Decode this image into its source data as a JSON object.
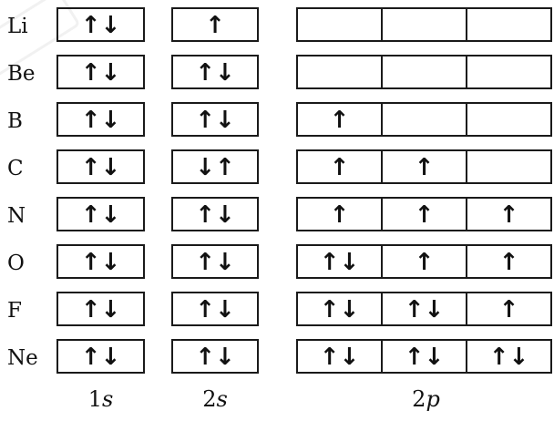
{
  "elements": [
    {
      "symbol": "Li",
      "s1": "↑↓",
      "s2": "↑",
      "p": [
        "",
        "",
        ""
      ]
    },
    {
      "symbol": "Be",
      "s1": "↑↓",
      "s2": "↑↓",
      "p": [
        "",
        "",
        ""
      ]
    },
    {
      "symbol": "B",
      "s1": "↑↓",
      "s2": "↑↓",
      "p": [
        "↑",
        "",
        ""
      ]
    },
    {
      "symbol": "C",
      "s1": "↑↓",
      "s2": "↓↑",
      "p": [
        "↑",
        "↑",
        ""
      ]
    },
    {
      "symbol": "N",
      "s1": "↑↓",
      "s2": "↑↓",
      "p": [
        "↑",
        "↑",
        "↑"
      ]
    },
    {
      "symbol": "O",
      "s1": "↑↓",
      "s2": "↑↓",
      "p": [
        "↑↓",
        "↑",
        "↑"
      ]
    },
    {
      "symbol": "F",
      "s1": "↑↓",
      "s2": "↑↓",
      "p": [
        "↑↓",
        "↑↓",
        "↑"
      ]
    },
    {
      "symbol": "Ne",
      "s1": "↑↓",
      "s2": "↑↓",
      "p": [
        "↑↓",
        "↑↓",
        "↑↓"
      ]
    }
  ],
  "orbital_labels": [
    {
      "num": "1",
      "letter": "s"
    },
    {
      "num": "2",
      "letter": "s"
    },
    {
      "num": "2",
      "letter": "p"
    }
  ],
  "colors": {
    "ink": "#111111",
    "box_border": "#1a1a1a",
    "background": "#ffffff"
  }
}
